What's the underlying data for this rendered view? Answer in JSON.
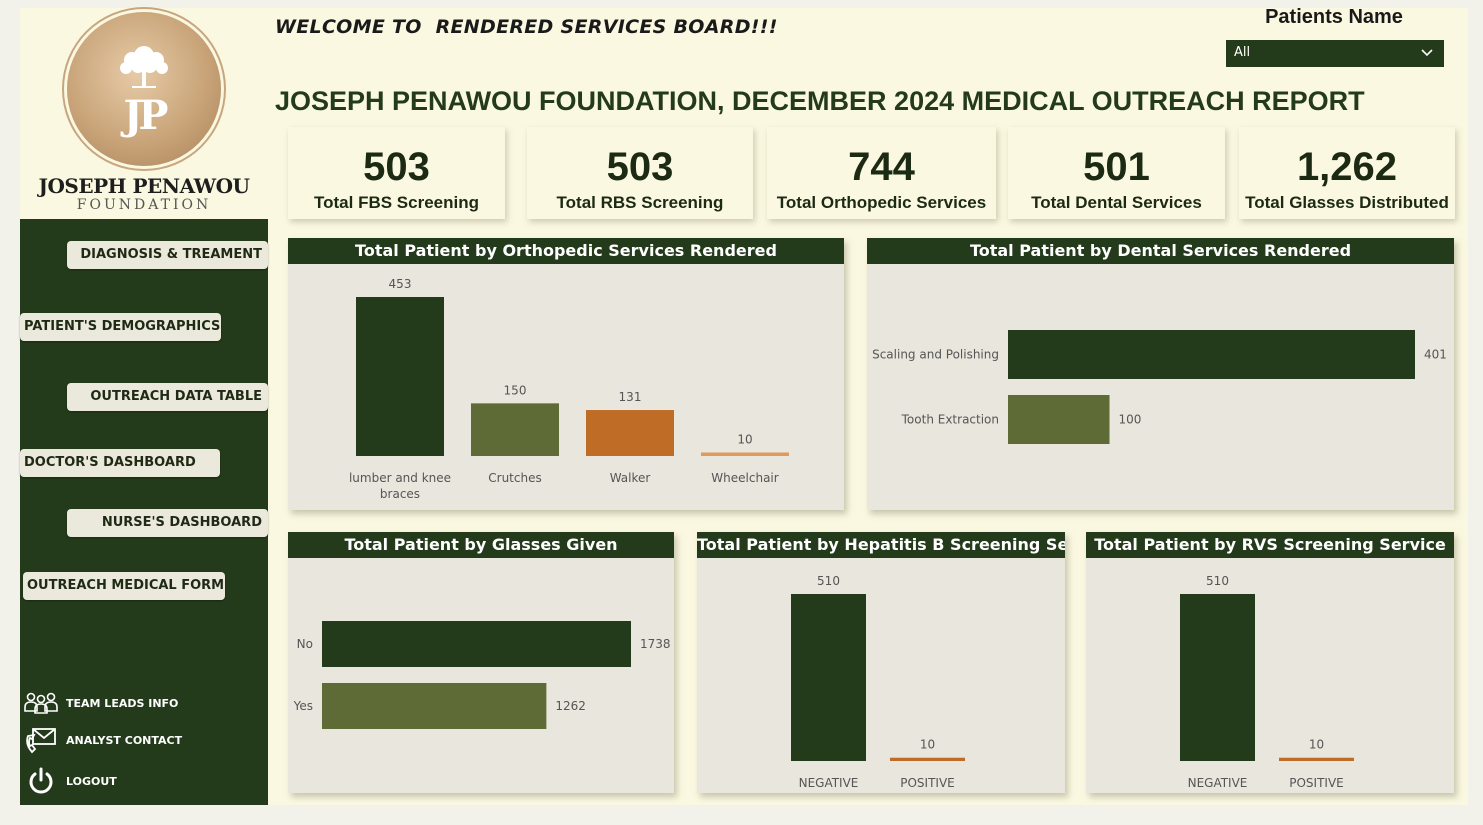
{
  "header": {
    "welcome": "WELCOME TO  RENDERED SERVICES BOARD!!!",
    "title": "JOSEPH PENAWOU FOUNDATION, DECEMBER 2024 MEDICAL OUTREACH REPORT"
  },
  "logo": {
    "monogram": "JP",
    "name": "JOSEPH PENAWOU",
    "sub": "FOUNDATION"
  },
  "filter": {
    "label": "Patients Name",
    "selected": "All"
  },
  "nav": {
    "diagnosis": "DIAGNOSIS & TREAMENT",
    "demographics": "PATIENT'S DEMOGRAPHICS",
    "outreach_table": "OUTREACH DATA TABLE",
    "doctor": "DOCTOR'S DASHBOARD",
    "nurse": "NURSE'S DASHBOARD",
    "medical_form": "OUTREACH MEDICAL FORM",
    "team_leads": "TEAM LEADS INFO",
    "analyst": "ANALYST CONTACT",
    "logout": "LOGOUT"
  },
  "kpis": [
    {
      "value": "503",
      "label": "Total FBS Screening"
    },
    {
      "value": "503",
      "label": "Total RBS Screening"
    },
    {
      "value": "744",
      "label": "Total Orthopedic Services"
    },
    {
      "value": "501",
      "label": "Total Dental Services"
    },
    {
      "value": "1,262",
      "label": "Total Glasses Distributed"
    }
  ],
  "colors": {
    "dark_green": "#243b1b",
    "olive": "#5f6b36",
    "orange": "#bf6c26",
    "panel_bg": "#e9e6dd",
    "page_bg": "#fbf8e1"
  },
  "chart_data": [
    {
      "id": "ortho",
      "type": "bar",
      "title": "Total Patient by Orthopedic Services Rendered",
      "categories": [
        "lumber and knee braces",
        "Crutches",
        "Walker",
        "Wheelchair"
      ],
      "category_lines": [
        [
          "lumber and knee",
          "braces"
        ],
        [
          "Crutches"
        ],
        [
          "Walker"
        ],
        [
          "Wheelchair"
        ]
      ],
      "values": [
        453,
        150,
        131,
        10
      ],
      "colors": [
        "#243b1b",
        "#5f6b36",
        "#bf6c26",
        "#e09a5c"
      ]
    },
    {
      "id": "dental",
      "type": "bar",
      "orientation": "horizontal",
      "title": "Total Patient by Dental Services Rendered",
      "categories": [
        "Scaling and Polishing",
        "Tooth Extraction"
      ],
      "values": [
        401,
        100
      ],
      "colors": [
        "#243b1b",
        "#5f6b36"
      ]
    },
    {
      "id": "glasses",
      "type": "bar",
      "orientation": "horizontal",
      "title": "Total Patient by Glasses Given",
      "categories": [
        "No",
        "Yes"
      ],
      "values": [
        1738,
        1262
      ],
      "colors": [
        "#243b1b",
        "#5f6b36"
      ]
    },
    {
      "id": "hepb",
      "type": "bar",
      "title": "Total Patient by Hepatitis B Screening Service",
      "categories": [
        "NEGATIVE",
        "POSITIVE"
      ],
      "values": [
        510,
        10
      ],
      "colors": [
        "#243b1b",
        "#bf6c26"
      ]
    },
    {
      "id": "rvs",
      "type": "bar",
      "title": "Total Patient by RVS Screening Service",
      "categories": [
        "NEGATIVE",
        "POSITIVE"
      ],
      "values": [
        510,
        10
      ],
      "colors": [
        "#243b1b",
        "#bf6c26"
      ]
    }
  ]
}
